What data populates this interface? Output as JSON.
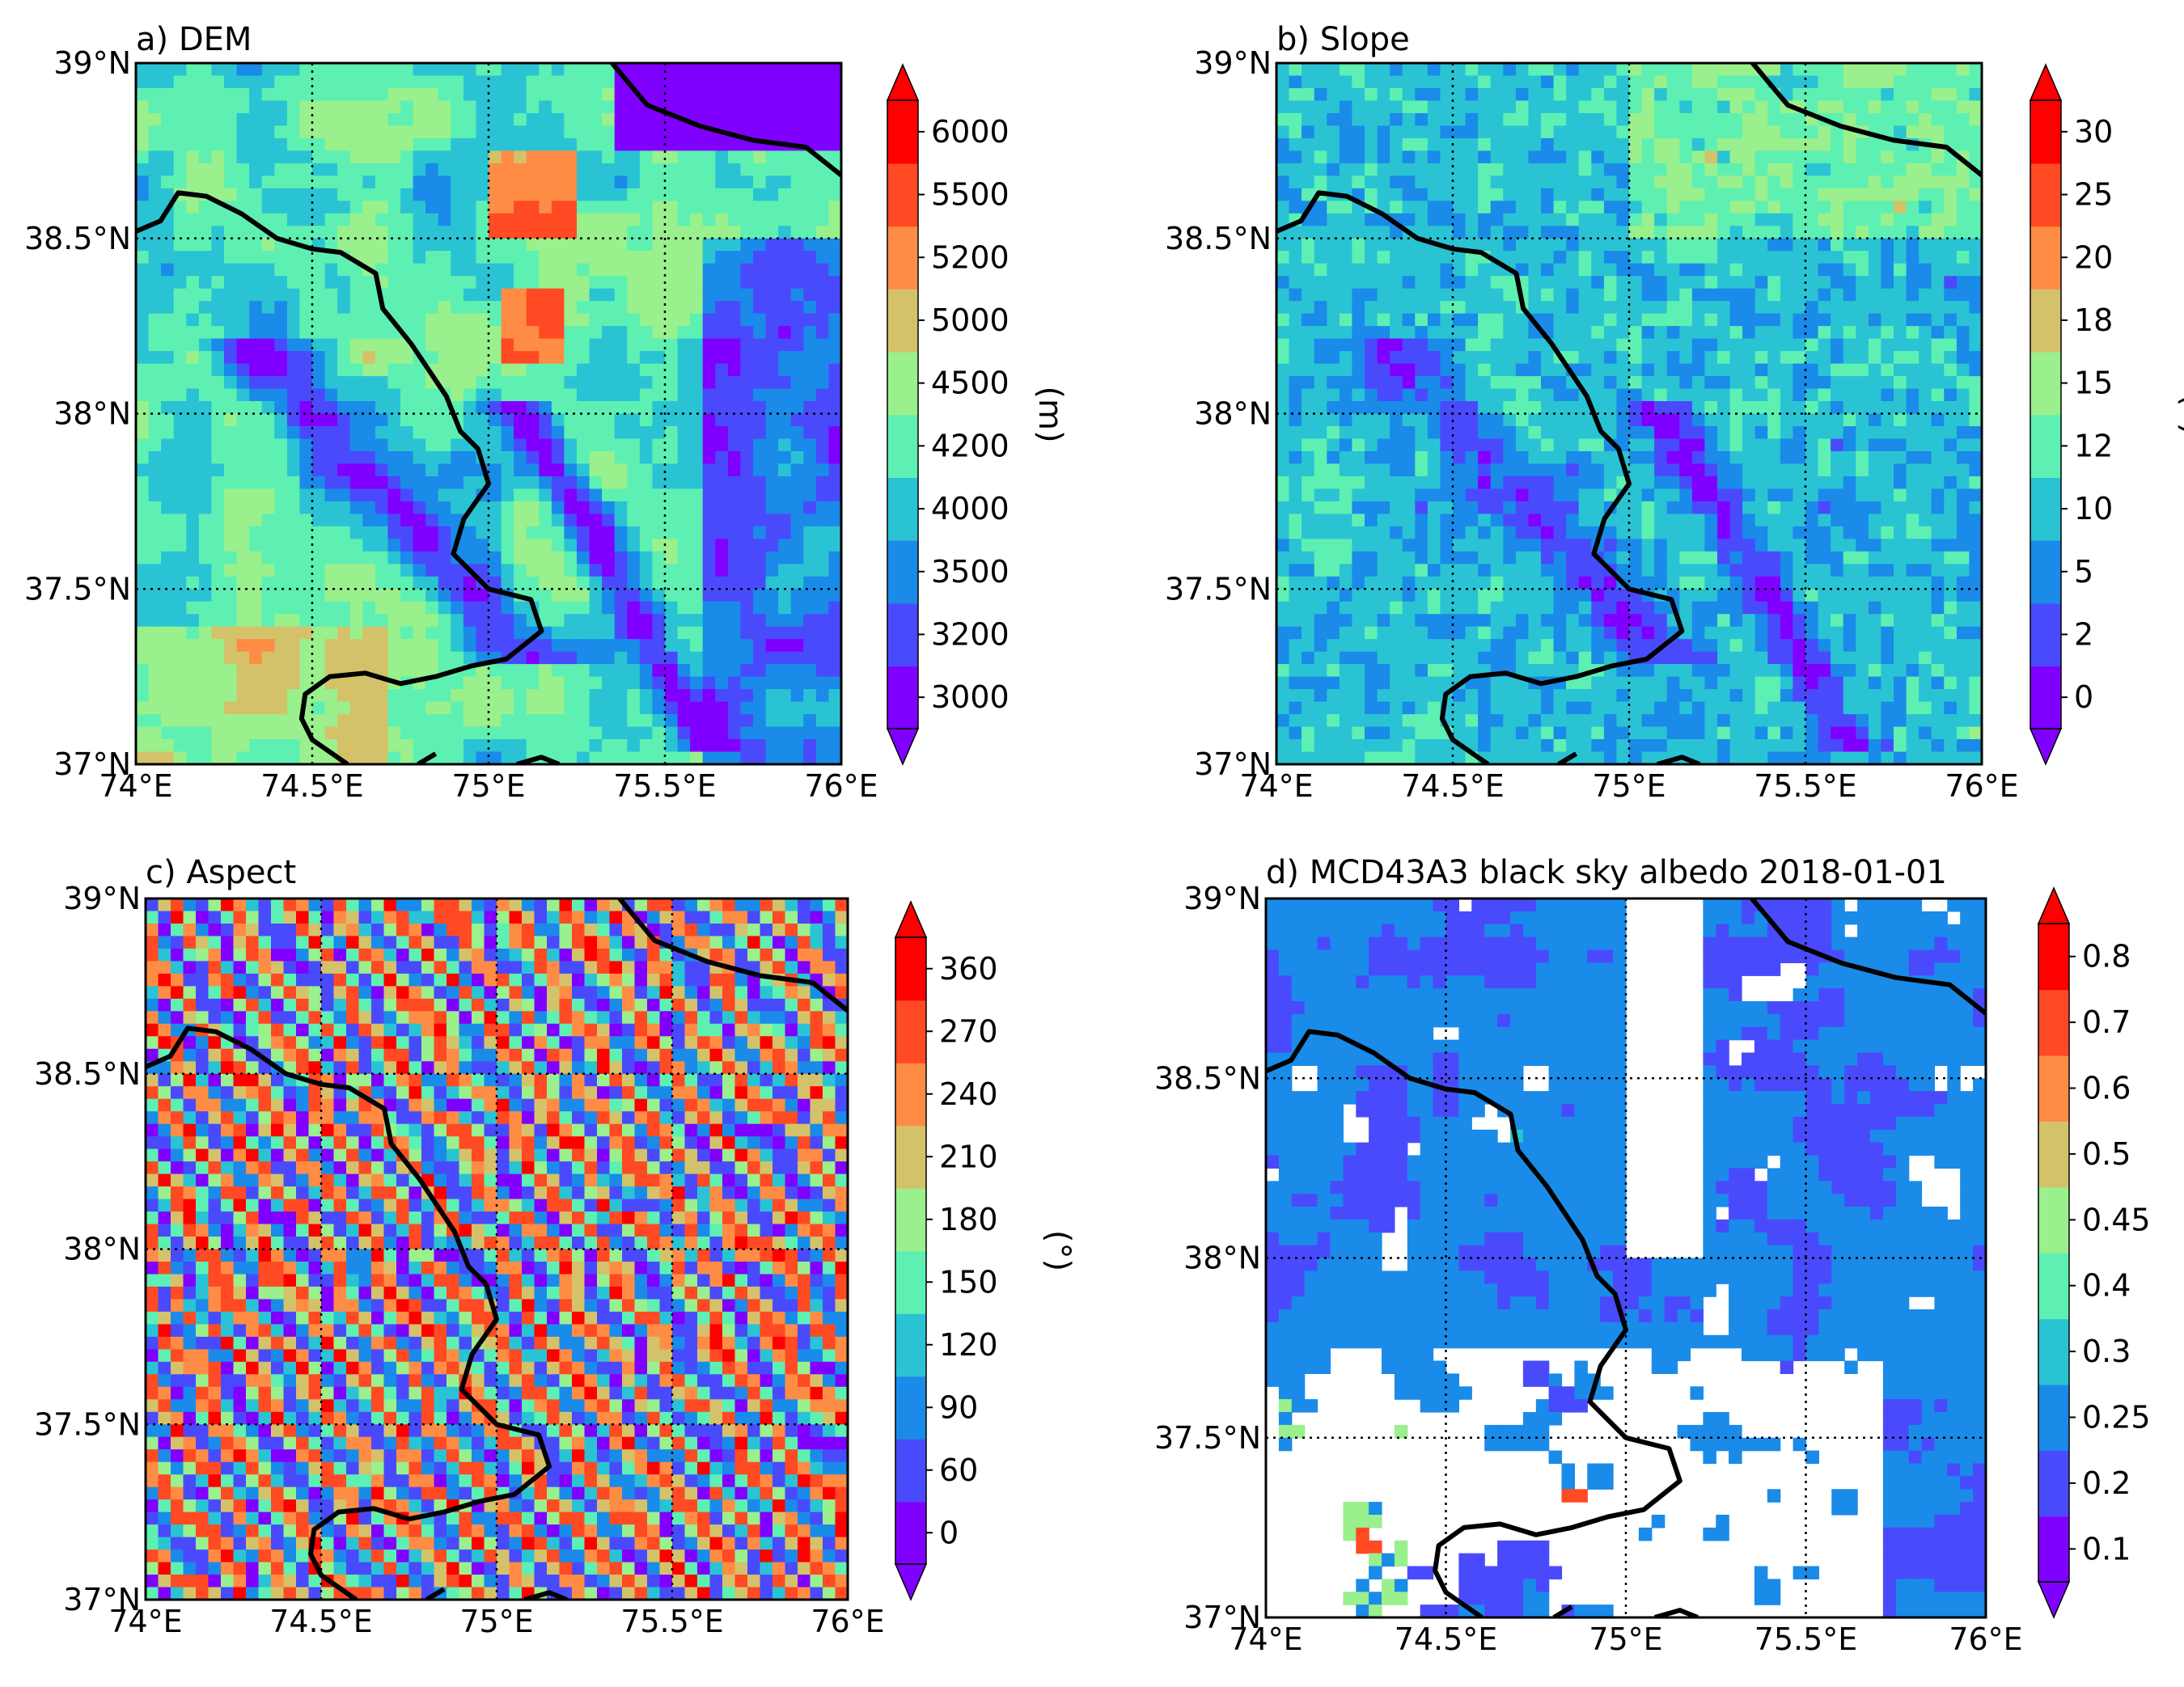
{
  "figure": {
    "colormap": [
      "#8000ff",
      "#4a4afd",
      "#1a8be8",
      "#2ac3d4",
      "#5ef0b2",
      "#99f08c",
      "#d4c26b",
      "#ff8c45",
      "#ff4a24",
      "#ff0000"
    ],
    "border_color": "#000000",
    "gridline_style": "dotted",
    "nodata_color": "#ffffff"
  },
  "chart_data": [
    {
      "type": "heatmap",
      "panel": "a",
      "title": "a) DEM",
      "xlim": [
        74,
        76
      ],
      "ylim": [
        37,
        39
      ],
      "x_ticks": [
        "74°E",
        "74.5°E",
        "75°E",
        "75.5°E",
        "76°E"
      ],
      "y_ticks": [
        "37°N",
        "37.5°N",
        "38°N",
        "38.5°N",
        "39°N"
      ],
      "colorbar": {
        "label": "(m)",
        "ticks": [
          "3000",
          "3200",
          "3500",
          "4000",
          "4200",
          "4500",
          "5000",
          "5200",
          "5500",
          "6000"
        ],
        "extend": "both"
      }
    },
    {
      "type": "heatmap",
      "panel": "b",
      "title": "b) Slope",
      "xlim": [
        74,
        76
      ],
      "ylim": [
        37,
        39
      ],
      "x_ticks": [
        "74°E",
        "74.5°E",
        "75°E",
        "75.5°E",
        "76°E"
      ],
      "y_ticks": [
        "37°N",
        "37.5°N",
        "38°N",
        "38.5°N",
        "39°N"
      ],
      "colorbar": {
        "label": "(°)",
        "ticks": [
          "0",
          "2",
          "5",
          "10",
          "12",
          "15",
          "18",
          "20",
          "25",
          "30"
        ],
        "extend": "both"
      }
    },
    {
      "type": "heatmap",
      "panel": "c",
      "title": "c) Aspect",
      "xlim": [
        74,
        76
      ],
      "ylim": [
        37,
        39
      ],
      "x_ticks": [
        "74°E",
        "74.5°E",
        "75°E",
        "75.5°E",
        "76°E"
      ],
      "y_ticks": [
        "37°N",
        "37.5°N",
        "38°N",
        "38.5°N",
        "39°N"
      ],
      "colorbar": {
        "label": "(°)",
        "ticks": [
          "0",
          "60",
          "90",
          "120",
          "150",
          "180",
          "210",
          "240",
          "270",
          "360"
        ],
        "extend": "both"
      }
    },
    {
      "type": "heatmap",
      "panel": "d",
      "title": "d) MCD43A3 black sky albedo 2018-01-01",
      "xlim": [
        74,
        76
      ],
      "ylim": [
        37,
        39
      ],
      "x_ticks": [
        "74°E",
        "74.5°E",
        "75°E",
        "75.5°E",
        "76°E"
      ],
      "y_ticks": [
        "37°N",
        "37.5°N",
        "38°N",
        "38.5°N",
        "39°N"
      ],
      "colorbar": {
        "label": "",
        "ticks": [
          "0.1",
          "0.2",
          "0.25",
          "0.3",
          "0.4",
          "0.45",
          "0.5",
          "0.6",
          "0.7",
          "0.8"
        ],
        "extend": "both"
      }
    }
  ]
}
